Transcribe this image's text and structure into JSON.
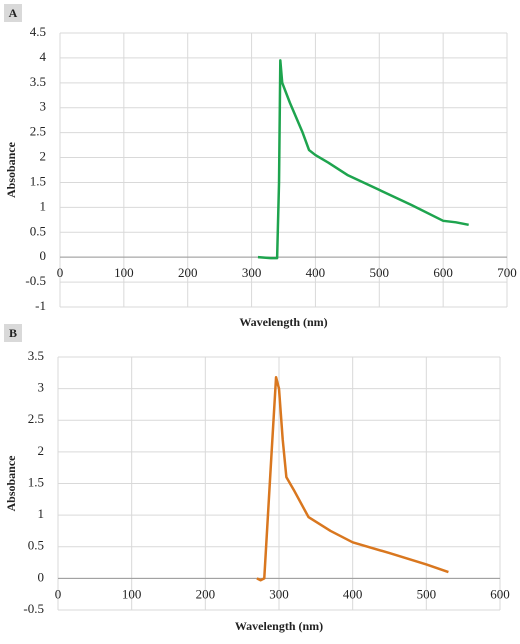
{
  "chart_data": [
    {
      "type": "line",
      "label": "A",
      "xlabel": "Wavelength (nm)",
      "ylabel": "Absobance",
      "x": [
        310,
        330,
        340,
        343,
        345,
        348,
        360,
        380,
        390,
        400,
        420,
        450,
        500,
        550,
        600,
        620,
        640
      ],
      "series": [
        {
          "color": "#1ea44e",
          "values": [
            0,
            -0.02,
            -0.02,
            1.5,
            3.95,
            3.5,
            3.1,
            2.5,
            2.15,
            2.05,
            1.9,
            1.65,
            1.35,
            1.05,
            0.73,
            0.7,
            0.65
          ]
        }
      ],
      "xlim": [
        0,
        700
      ],
      "xticks": [
        0,
        100,
        200,
        300,
        400,
        500,
        600,
        700
      ],
      "ylim": [
        -1,
        4.5
      ],
      "yticks": [
        -1,
        -0.5,
        0,
        0.5,
        1,
        1.5,
        2,
        2.5,
        3,
        3.5,
        4,
        4.5
      ],
      "grid": true
    },
    {
      "type": "line",
      "label": "B",
      "xlabel": "Wavelength (nm)",
      "ylabel": "Absobance",
      "x": [
        270,
        275,
        280,
        290,
        296,
        300,
        305,
        310,
        320,
        340,
        370,
        400,
        450,
        500,
        530
      ],
      "series": [
        {
          "color": "#d9771f",
          "values": [
            0,
            -0.03,
            0,
            2,
            3.18,
            3,
            2.2,
            1.6,
            1.4,
            0.97,
            0.75,
            0.57,
            0.4,
            0.22,
            0.1
          ]
        }
      ],
      "xlim": [
        0,
        600
      ],
      "xticks": [
        0,
        100,
        200,
        300,
        400,
        500,
        600
      ],
      "ylim": [
        -0.5,
        3.5
      ],
      "yticks": [
        -0.5,
        0,
        0.5,
        1,
        1.5,
        2,
        2.5,
        3,
        3.5
      ],
      "grid": true
    }
  ]
}
